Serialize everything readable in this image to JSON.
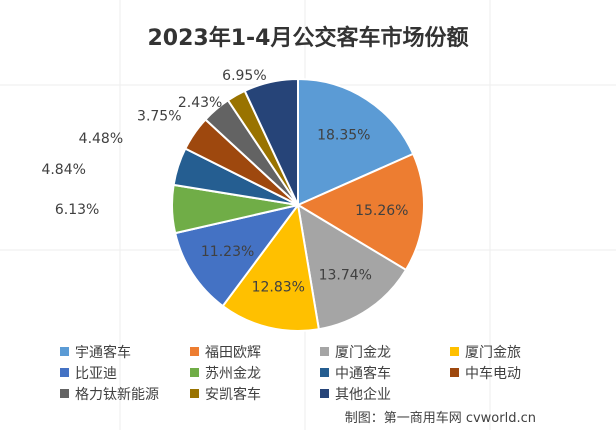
{
  "chart_data": {
    "type": "pie",
    "title": "2023年1-4月公交客车市场份额",
    "slices": [
      {
        "name": "宇通客车",
        "value": 18.35,
        "label": "18.35%",
        "color": "#5B9BD5"
      },
      {
        "name": "福田欧辉",
        "value": 15.26,
        "label": "15.26%",
        "color": "#ED7D31"
      },
      {
        "name": "厦门金龙",
        "value": 13.74,
        "label": "13.74%",
        "color": "#A5A5A5"
      },
      {
        "name": "厦门金旅",
        "value": 12.83,
        "label": "12.83%",
        "color": "#FFC000"
      },
      {
        "name": "比亚迪",
        "value": 11.23,
        "label": "11.23%",
        "color": "#4472C4"
      },
      {
        "name": "苏州金龙",
        "value": 6.13,
        "label": "6.13%",
        "color": "#70AD47"
      },
      {
        "name": "中通客车",
        "value": 4.84,
        "label": "4.84%",
        "color": "#255E91"
      },
      {
        "name": "中车电动",
        "value": 4.48,
        "label": "4.48%",
        "color": "#9E480E"
      },
      {
        "name": "格力钛新能源",
        "value": 3.75,
        "label": "3.75%",
        "color": "#636363"
      },
      {
        "name": "安凯客车",
        "value": 2.43,
        "label": "2.43%",
        "color": "#997300"
      },
      {
        "name": "其他企业",
        "value": 6.95,
        "label": "6.95%",
        "color": "#264478"
      }
    ],
    "legend_position": "bottom"
  },
  "credit": "制图：第一商用车网 cvworld.cn"
}
